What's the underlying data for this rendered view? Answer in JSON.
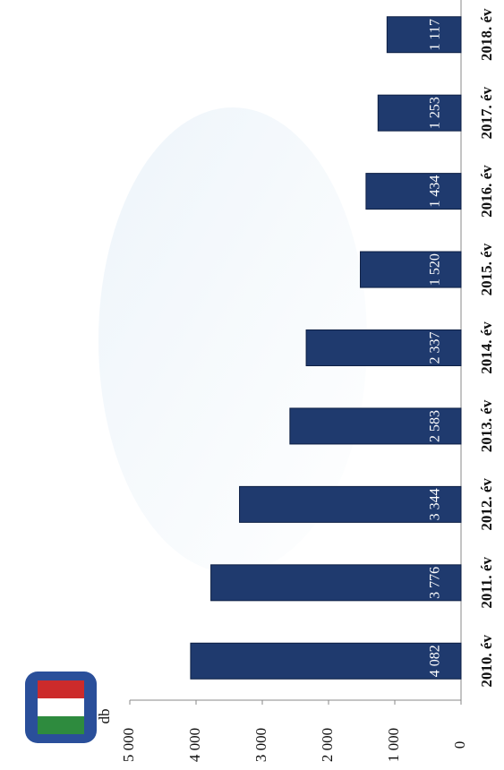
{
  "chart_data": {
    "type": "bar",
    "title": "db",
    "categories": [
      "2010. év",
      "2011. év",
      "2012. év",
      "2013. év",
      "2014. év",
      "2015. év",
      "2016. év",
      "2017. év",
      "2018. év"
    ],
    "values": [
      4082,
      3776,
      3344,
      2583,
      2337,
      1520,
      1434,
      1253,
      1117
    ],
    "value_labels": [
      "4 082",
      "3 776",
      "3 344",
      "2 583",
      "2 337",
      "1 520",
      "1 434",
      "1 253",
      "1 117"
    ],
    "color": "#1f3a6e",
    "ylim": [
      0,
      5000
    ],
    "yticks": [
      0,
      {
        "value": 1000,
        "label": "1 000"
      },
      {
        "value": 2000,
        "label": "2 000"
      },
      {
        "value": 3000,
        "label": "3 000"
      },
      {
        "value": 4000,
        "label": "4 000"
      },
      {
        "value": 5000,
        "label": "5 000"
      }
    ],
    "grid": false
  }
}
